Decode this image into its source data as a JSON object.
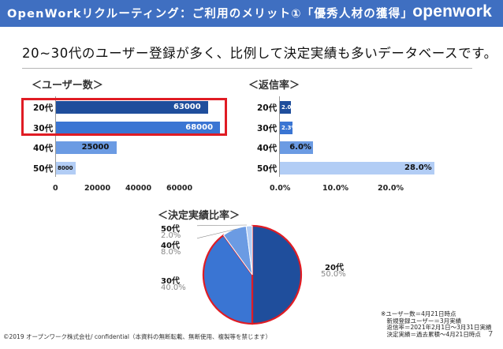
{
  "header": {
    "title": "OpenWorkリクルーティング：ご利用のメリット①「優秀人材の獲得」",
    "brand": "openwork",
    "bg_color": "#3f6fc1"
  },
  "headline": "20~30代のユーザー登録が多く、比例して決定実績も多いデータベースです。",
  "chart_data": [
    {
      "type": "bar",
      "orientation": "horizontal",
      "title": "＜ユーザー数＞",
      "categories": [
        "20代",
        "30代",
        "40代",
        "50代"
      ],
      "values": [
        63000,
        68000,
        25000,
        8000
      ],
      "value_labels": [
        "63000",
        "68000",
        "25000",
        "8000"
      ],
      "colors": [
        "#1f4e9c",
        "#3a75d3",
        "#6b9be3",
        "#b2cdf5"
      ],
      "xlim": [
        0,
        80000
      ],
      "ticks": [
        "0",
        "20000",
        "40000",
        "60000"
      ],
      "highlighted_categories": [
        "20代",
        "30代"
      ]
    },
    {
      "type": "bar",
      "orientation": "horizontal",
      "title": "＜返信率＞",
      "categories": [
        "20代",
        "30代",
        "40代",
        "50代"
      ],
      "values": [
        2.0,
        2.3,
        6.0,
        28.0
      ],
      "value_labels": [
        "2.0%",
        "2.3%",
        "6.0%",
        "28.0%"
      ],
      "colors": [
        "#1f4e9c",
        "#3a75d3",
        "#6b9be3",
        "#b2cdf5"
      ],
      "xlim": [
        0,
        30
      ],
      "ticks": [
        "0.0%",
        "10.0%",
        "20.0%"
      ]
    },
    {
      "type": "pie",
      "title": "＜決定実績比率＞",
      "slices": [
        {
          "label": "20代",
          "value": 50.0,
          "pct": "50.0%",
          "color": "#1f4e9c"
        },
        {
          "label": "30代",
          "value": 40.0,
          "pct": "40.0%",
          "color": "#3a75d3"
        },
        {
          "label": "40代",
          "value": 8.0,
          "pct": "8.0%",
          "color": "#6b9be3"
        },
        {
          "label": "50代",
          "value": 2.0,
          "pct": "2.0%",
          "color": "#b2cdf5"
        }
      ],
      "highlight_color": "#e01c24"
    }
  ],
  "notes": [
    "※ユーザー数＝4月21日時点",
    "　新規登録ユーザー＝3月実績",
    "　返信率＝2021年2月1日～3月31日実績",
    "　決定実績＝過去累積～4月21日時点"
  ],
  "footer": "©2019 オープンワーク株式会社/ confidential（本資料の無断転載、無断使用、複製等を禁じます）",
  "page_number": "7"
}
